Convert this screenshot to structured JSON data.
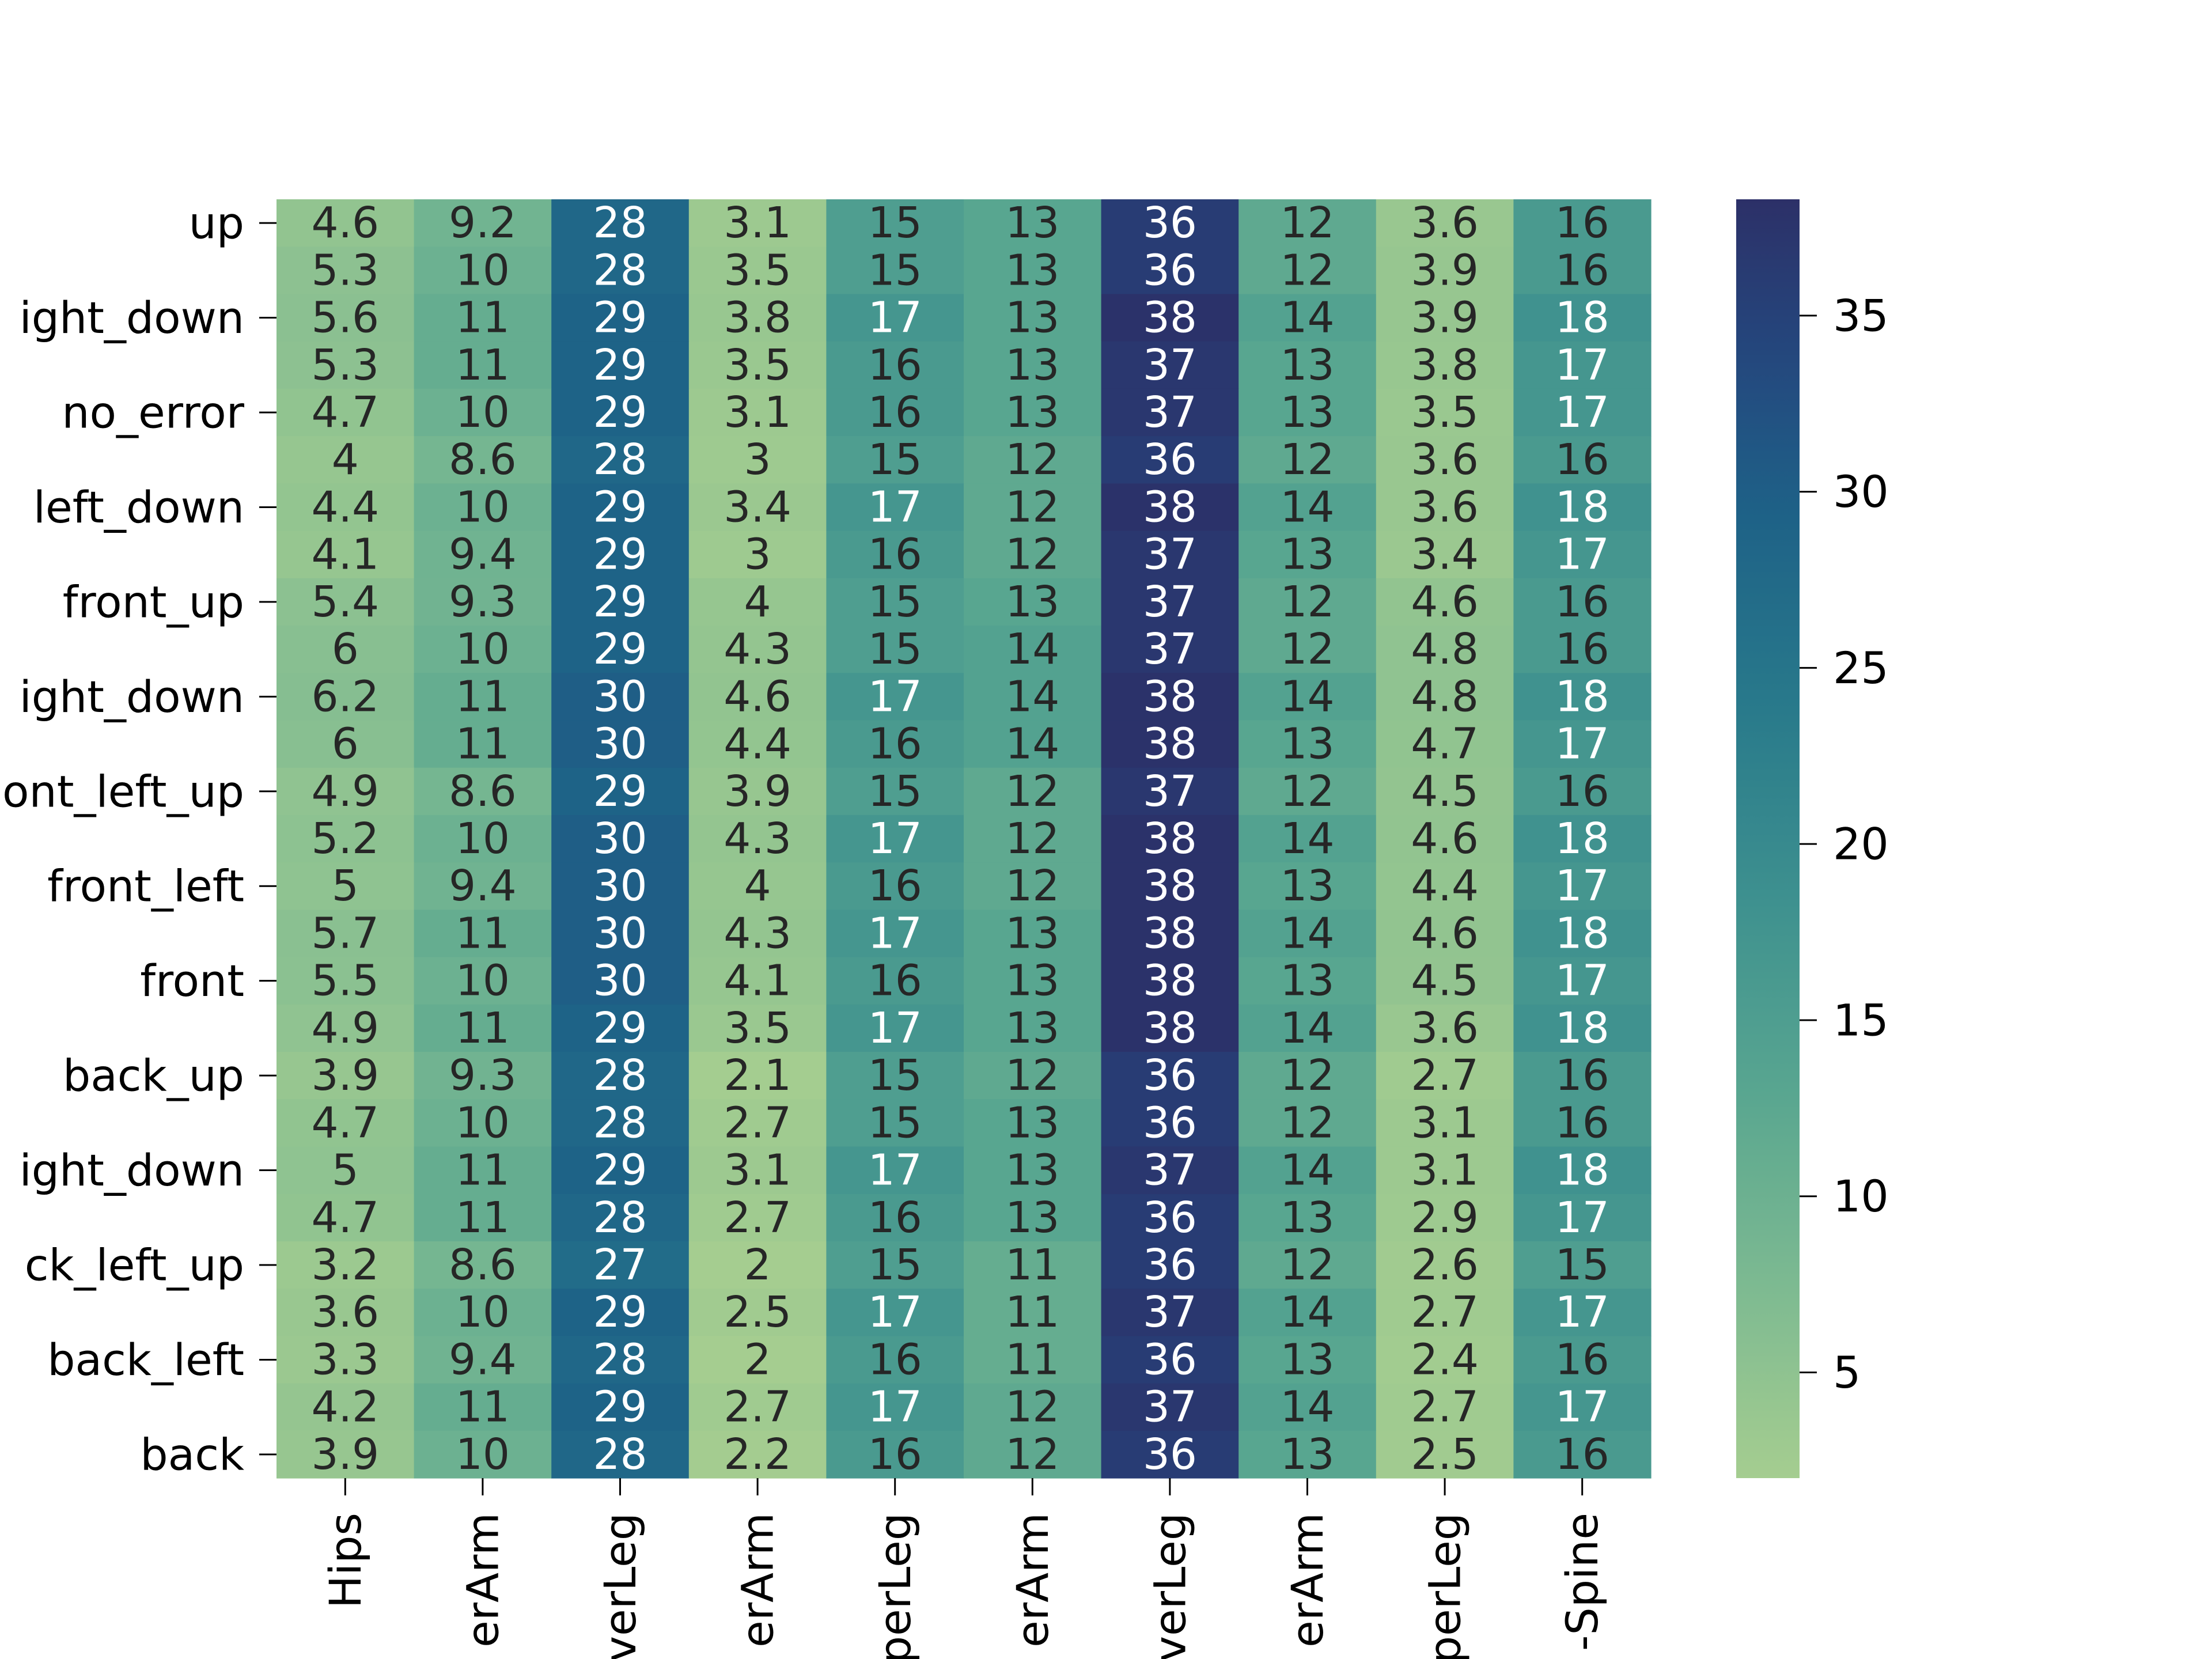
{
  "chart_data": {
    "type": "heatmap",
    "title": "",
    "xlabel": "",
    "ylabel": "",
    "colormap": "crest",
    "color_range": [
      2,
      38.3
    ],
    "colorbar_ticks": [
      5,
      10,
      15,
      20,
      25,
      30,
      35
    ],
    "x_categories": [
      "Hips",
      "erArm",
      "verLeg",
      "erArm",
      "perLeg",
      "erArm",
      "verLeg",
      "erArm",
      "perLeg",
      "-Spine"
    ],
    "y_tick_labels": [
      "up",
      "",
      "ight_down",
      "",
      "no_error",
      "",
      "left_down",
      "",
      "front_up",
      "",
      "ight_down",
      "",
      "ont_left_up",
      "",
      "front_left",
      "",
      "front",
      "",
      "back_up",
      "",
      "ight_down",
      "",
      "ck_left_up",
      "",
      "back_left",
      "",
      "back"
    ],
    "values": [
      [
        4.6,
        9.2,
        28,
        3.1,
        15,
        13,
        36,
        12,
        3.6,
        16
      ],
      [
        5.3,
        10,
        28,
        3.5,
        15,
        13,
        36,
        12,
        3.9,
        16
      ],
      [
        5.6,
        11,
        29,
        3.8,
        17,
        13,
        38,
        14,
        3.9,
        18
      ],
      [
        5.3,
        11,
        29,
        3.5,
        16,
        13,
        37,
        13,
        3.8,
        17
      ],
      [
        4.7,
        10,
        29,
        3.1,
        16,
        13,
        37,
        13,
        3.5,
        17
      ],
      [
        4,
        8.6,
        28,
        3,
        15,
        12,
        36,
        12,
        3.6,
        16
      ],
      [
        4.4,
        10,
        29,
        3.4,
        17,
        12,
        38,
        14,
        3.6,
        18
      ],
      [
        4.1,
        9.4,
        29,
        3,
        16,
        12,
        37,
        13,
        3.4,
        17
      ],
      [
        5.4,
        9.3,
        29,
        4,
        15,
        13,
        37,
        12,
        4.6,
        16
      ],
      [
        6,
        10,
        29,
        4.3,
        15,
        14,
        37,
        12,
        4.8,
        16
      ],
      [
        6.2,
        11,
        30,
        4.6,
        17,
        14,
        38,
        14,
        4.8,
        18
      ],
      [
        6,
        11,
        30,
        4.4,
        16,
        14,
        38,
        13,
        4.7,
        17
      ],
      [
        4.9,
        8.6,
        29,
        3.9,
        15,
        12,
        37,
        12,
        4.5,
        16
      ],
      [
        5.2,
        10,
        30,
        4.3,
        17,
        12,
        38,
        14,
        4.6,
        18
      ],
      [
        5,
        9.4,
        30,
        4,
        16,
        12,
        38,
        13,
        4.4,
        17
      ],
      [
        5.7,
        11,
        30,
        4.3,
        17,
        13,
        38,
        14,
        4.6,
        18
      ],
      [
        5.5,
        10,
        30,
        4.1,
        16,
        13,
        38,
        13,
        4.5,
        17
      ],
      [
        4.9,
        11,
        29,
        3.5,
        17,
        13,
        38,
        14,
        3.6,
        18
      ],
      [
        3.9,
        9.3,
        28,
        2.1,
        15,
        12,
        36,
        12,
        2.7,
        16
      ],
      [
        4.7,
        10,
        28,
        2.7,
        15,
        13,
        36,
        12,
        3.1,
        16
      ],
      [
        5,
        11,
        29,
        3.1,
        17,
        13,
        37,
        14,
        3.1,
        18
      ],
      [
        4.7,
        11,
        28,
        2.7,
        16,
        13,
        36,
        13,
        2.9,
        17
      ],
      [
        3.2,
        8.6,
        27,
        2,
        15,
        11,
        36,
        12,
        2.6,
        15
      ],
      [
        3.6,
        10,
        29,
        2.5,
        17,
        11,
        37,
        14,
        2.7,
        17
      ],
      [
        3.3,
        9.4,
        28,
        2,
        16,
        11,
        36,
        13,
        2.4,
        16
      ],
      [
        4.2,
        11,
        29,
        2.7,
        17,
        12,
        37,
        14,
        2.7,
        17
      ],
      [
        3.9,
        10,
        28,
        2.2,
        16,
        12,
        36,
        13,
        2.5,
        16
      ]
    ]
  }
}
